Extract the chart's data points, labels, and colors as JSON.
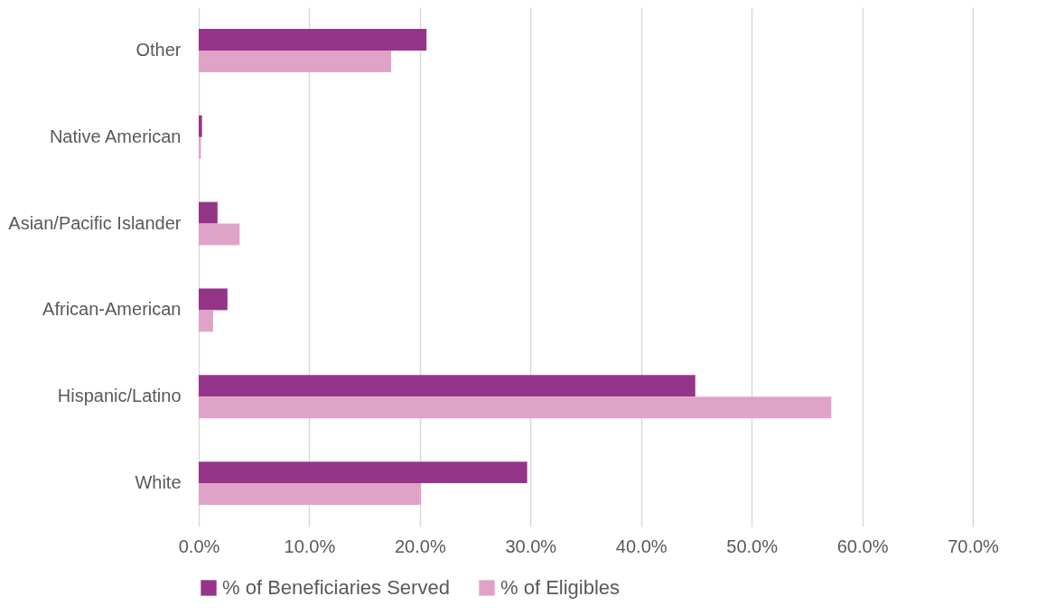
{
  "chart_data": {
    "type": "bar",
    "orientation": "horizontal",
    "categories": [
      "Other",
      "Native American",
      "Asian/Pacific Islander",
      "African-American",
      "Hispanic/Latino",
      "White"
    ],
    "series": [
      {
        "name": "% of Beneficiaries Served",
        "color": "#953589",
        "values": [
          20.6,
          0.3,
          1.7,
          2.6,
          44.9,
          29.7
        ]
      },
      {
        "name": "% of Eligibles",
        "color": "#e0a3c8",
        "values": [
          17.4,
          0.2,
          3.7,
          1.3,
          57.2,
          20.1
        ]
      }
    ],
    "xlim": [
      0,
      70
    ],
    "xticks": [
      {
        "value": 0,
        "label": "0.0%"
      },
      {
        "value": 10,
        "label": "10.0%"
      },
      {
        "value": 20,
        "label": "20.0%"
      },
      {
        "value": 30,
        "label": "30.0%"
      },
      {
        "value": 40,
        "label": "40.0%"
      },
      {
        "value": 50,
        "label": "50.0%"
      },
      {
        "value": 60,
        "label": "60.0%"
      },
      {
        "value": 70,
        "label": "70.0%"
      }
    ],
    "grid": "x",
    "legend": "bottom"
  }
}
